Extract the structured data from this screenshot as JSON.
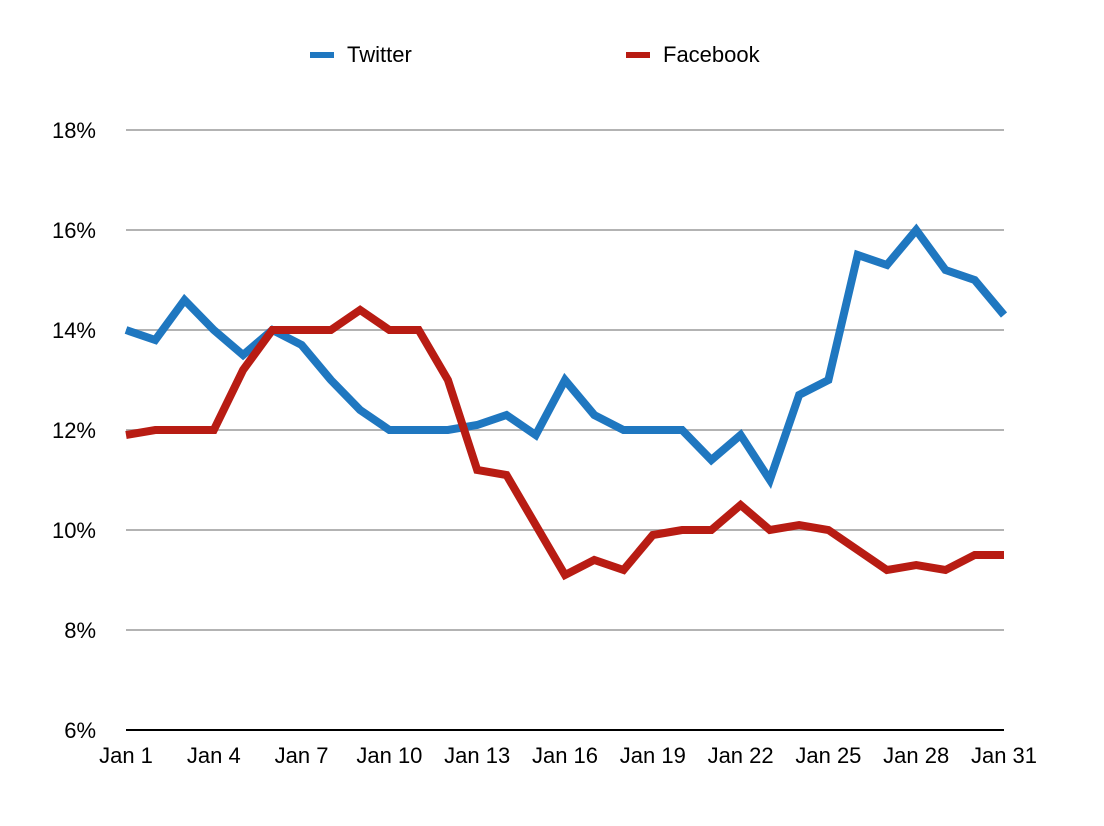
{
  "chart_data": {
    "type": "line",
    "title": "",
    "xlabel": "",
    "ylabel": "",
    "x": [
      "Jan 1",
      "Jan 2",
      "Jan 3",
      "Jan 4",
      "Jan 5",
      "Jan 6",
      "Jan 7",
      "Jan 8",
      "Jan 9",
      "Jan 10",
      "Jan 11",
      "Jan 12",
      "Jan 13",
      "Jan 14",
      "Jan 15",
      "Jan 16",
      "Jan 17",
      "Jan 18",
      "Jan 19",
      "Jan 20",
      "Jan 21",
      "Jan 22",
      "Jan 23",
      "Jan 24",
      "Jan 25",
      "Jan 26",
      "Jan 27",
      "Jan 28",
      "Jan 29",
      "Jan 30",
      "Jan 31"
    ],
    "x_tick_labels": [
      "Jan 1",
      "Jan 4",
      "Jan 7",
      "Jan 10",
      "Jan 13",
      "Jan 16",
      "Jan 19",
      "Jan 22",
      "Jan 25",
      "Jan 28",
      "Jan 31"
    ],
    "ylim": [
      6,
      18
    ],
    "y_ticks": [
      6,
      8,
      10,
      12,
      14,
      16,
      18
    ],
    "y_tick_labels": [
      "6%",
      "8%",
      "10%",
      "12%",
      "14%",
      "16%",
      "18%"
    ],
    "grid": true,
    "legend_position": "top-center",
    "series": [
      {
        "name": "Twitter",
        "color": "#1f77c0",
        "values": [
          14.0,
          13.8,
          14.6,
          14.0,
          13.5,
          14.0,
          13.7,
          13.0,
          12.4,
          12.0,
          12.0,
          12.0,
          12.1,
          12.3,
          11.9,
          13.0,
          12.3,
          12.0,
          12.0,
          12.0,
          11.4,
          11.9,
          11.0,
          12.7,
          13.0,
          15.5,
          15.3,
          16.0,
          15.2,
          15.0,
          14.3
        ]
      },
      {
        "name": "Facebook",
        "color": "#b81c13",
        "values": [
          11.9,
          12.0,
          12.0,
          12.0,
          13.2,
          14.0,
          14.0,
          14.0,
          14.4,
          14.0,
          14.0,
          13.0,
          11.2,
          11.1,
          10.1,
          9.1,
          9.4,
          9.2,
          9.9,
          10.0,
          10.0,
          10.5,
          10.0,
          10.1,
          10.0,
          9.6,
          9.2,
          9.3,
          9.2,
          9.5,
          9.5
        ]
      }
    ]
  }
}
